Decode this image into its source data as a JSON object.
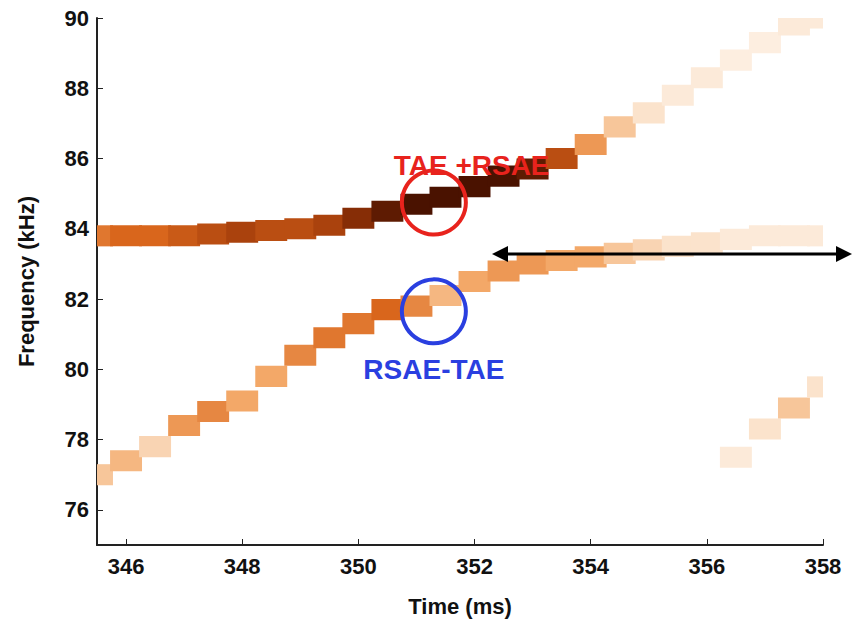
{
  "chart_data": {
    "type": "spectrogram",
    "x_label": "Time (ms)",
    "y_label": "Frequency (kHz)",
    "xlim": [
      345.5,
      358
    ],
    "xticks": [
      346,
      348,
      350,
      352,
      354,
      356,
      358
    ],
    "ylim": [
      75,
      90
    ],
    "yticks": [
      76,
      78,
      80,
      82,
      84,
      86,
      88,
      90
    ],
    "grid": false,
    "cell_size": [
      0.55,
      0.6
    ],
    "zlim": [
      0,
      1
    ],
    "colors": [
      "#ffffff",
      "#fbe3cc",
      "#f3a868",
      "#d9661c",
      "#9a3608",
      "#4a1200"
    ],
    "cells": [
      [
        345.5,
        77.0,
        0.3
      ],
      [
        346,
        77.4,
        0.35
      ],
      [
        346.5,
        77.8,
        0.25
      ],
      [
        347,
        78.4,
        0.45
      ],
      [
        347.5,
        78.8,
        0.5
      ],
      [
        348,
        79.1,
        0.4
      ],
      [
        348.5,
        79.8,
        0.4
      ],
      [
        349,
        80.4,
        0.5
      ],
      [
        349.5,
        80.9,
        0.55
      ],
      [
        350,
        81.3,
        0.55
      ],
      [
        350.5,
        81.7,
        0.6
      ],
      [
        351,
        81.8,
        0.5
      ],
      [
        351.5,
        82.1,
        0.35
      ],
      [
        352,
        82.5,
        0.4
      ],
      [
        352.5,
        82.8,
        0.45
      ],
      [
        353,
        83.0,
        0.45
      ],
      [
        353.5,
        83.1,
        0.4
      ],
      [
        354,
        83.2,
        0.4
      ],
      [
        354.5,
        83.3,
        0.3
      ],
      [
        355,
        83.4,
        0.25
      ],
      [
        355.5,
        83.5,
        0.2
      ],
      [
        356,
        83.6,
        0.2
      ],
      [
        356.5,
        83.7,
        0.15
      ],
      [
        357,
        83.8,
        0.15
      ],
      [
        357.5,
        83.8,
        0.15
      ],
      [
        358,
        83.8,
        0.15
      ],
      [
        356.5,
        77.5,
        0.15
      ],
      [
        357,
        78.3,
        0.2
      ],
      [
        357.5,
        78.9,
        0.3
      ],
      [
        358,
        79.5,
        0.2
      ],
      [
        345.5,
        83.8,
        0.55
      ],
      [
        346,
        83.8,
        0.6
      ],
      [
        346.5,
        83.8,
        0.6
      ],
      [
        347,
        83.8,
        0.65
      ],
      [
        347.5,
        83.85,
        0.7
      ],
      [
        348,
        83.9,
        0.75
      ],
      [
        348.5,
        83.95,
        0.7
      ],
      [
        349,
        84.0,
        0.7
      ],
      [
        349.5,
        84.1,
        0.75
      ],
      [
        350,
        84.3,
        0.85
      ],
      [
        350.5,
        84.5,
        0.95
      ],
      [
        351,
        84.7,
        1
      ],
      [
        351.5,
        84.9,
        1
      ],
      [
        352,
        85.2,
        1
      ],
      [
        352.5,
        85.5,
        1
      ],
      [
        353,
        85.7,
        0.95
      ],
      [
        353.5,
        86.0,
        0.7
      ],
      [
        354,
        86.4,
        0.45
      ],
      [
        354.5,
        86.9,
        0.3
      ],
      [
        355,
        87.3,
        0.2
      ],
      [
        355.5,
        87.8,
        0.15
      ],
      [
        356,
        88.3,
        0.15
      ],
      [
        356.5,
        88.8,
        0.12
      ],
      [
        357,
        89.3,
        0.12
      ],
      [
        357.5,
        89.8,
        0.15
      ],
      [
        358,
        90.0,
        0.15
      ]
    ],
    "annotations": [
      {
        "text": "TAE +RSAE",
        "color": "#e8231d",
        "marker": "circle",
        "x": 351.3,
        "y": 84.75,
        "label_x": 351.95,
        "label_y": 85.8
      },
      {
        "text": "RSAE-TAE",
        "color": "#2a3fe0",
        "marker": "circle",
        "x": 351.3,
        "y": 81.65,
        "label_x": 351.3,
        "label_y": 80.0
      }
    ]
  }
}
